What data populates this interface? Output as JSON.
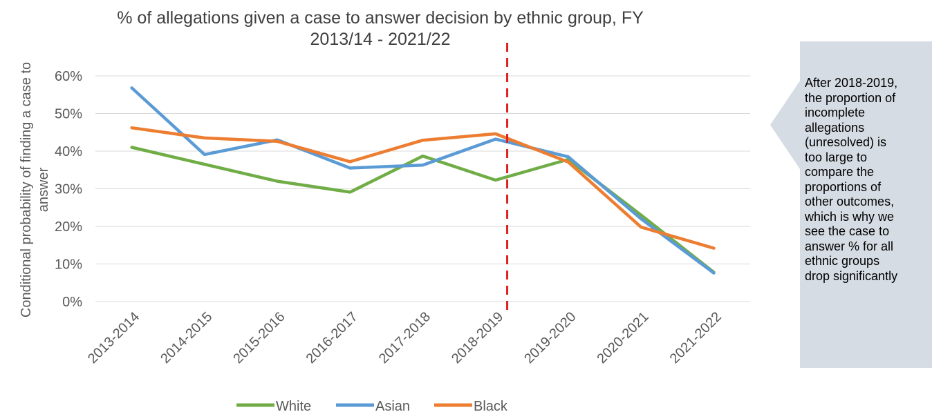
{
  "chart_data": {
    "type": "line",
    "title_lines": [
      "% of allegations given a case to answer decision by ethnic group, FY",
      "2013/14 - 2021/22"
    ],
    "ylabel_lines": [
      "Conditional probability of finding a case to",
      "answer"
    ],
    "xlabel": "",
    "categories": [
      "2013-2014",
      "2014-2015",
      "2015-2016",
      "2016-2017",
      "2017-2018",
      "2018-2019",
      "2019-2020",
      "2020-2021",
      "2021-2022"
    ],
    "yticks": [
      "0%",
      "10%",
      "20%",
      "30%",
      "40%",
      "50%",
      "60%"
    ],
    "ylim": [
      0,
      60
    ],
    "grid": true,
    "legend_position": "bottom",
    "series": [
      {
        "name": "White",
        "color": "#70AD47",
        "values": [
          41,
          36.5,
          32,
          29.1,
          38.7,
          32.3,
          37.8,
          23.0,
          7.8
        ]
      },
      {
        "name": "Asian",
        "color": "#5B9BD5",
        "values": [
          56.8,
          39.1,
          43.0,
          35.5,
          36.3,
          43.2,
          38.5,
          22.0,
          7.6
        ]
      },
      {
        "name": "Black",
        "color": "#ED7D31",
        "values": [
          46.2,
          43.5,
          42.6,
          37.2,
          42.9,
          44.6,
          37.1,
          19.8,
          14.2
        ]
      }
    ],
    "reference_line": {
      "after_category": "2018-2019",
      "color": "#E02020",
      "style": "dashed"
    },
    "annotation": "After 2018-2019, the proportion of incomplete allegations (unresolved) is too large to compare the proportions of other outcomes, which is why we see the case to answer % for all ethnic groups drop significantly"
  },
  "callout": {
    "lines": [
      "After 2018-2019,",
      "the proportion of",
      "incomplete",
      "allegations",
      "(unresolved) is",
      "too large to",
      "compare the",
      "proportions of",
      "other outcomes,",
      "which is why we",
      "see the case to",
      "answer % for all",
      "ethnic groups",
      "drop significantly"
    ],
    "background_color": "#D6DCE4"
  }
}
